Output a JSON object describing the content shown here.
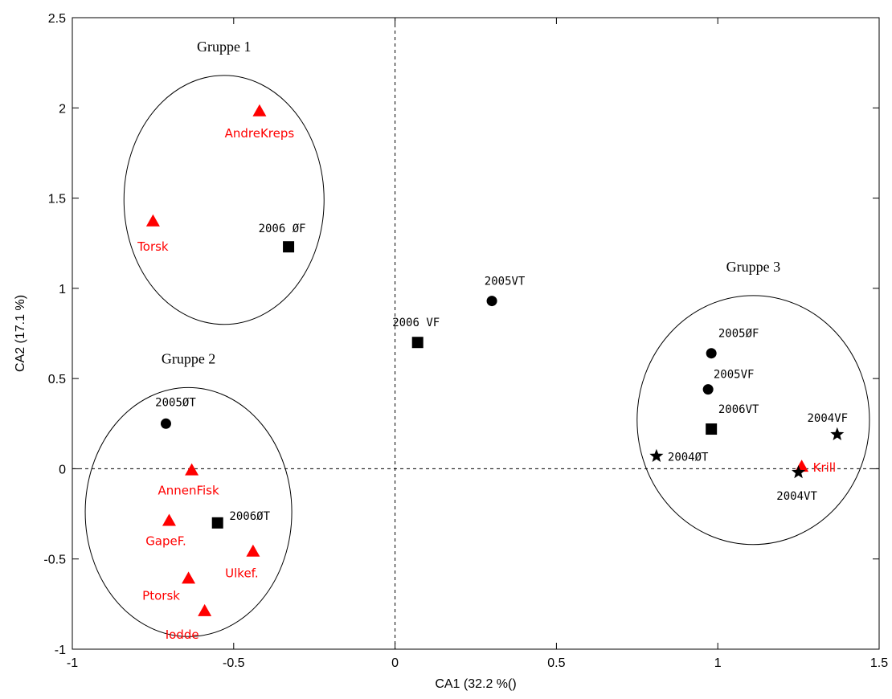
{
  "colors": {
    "species": "#ff0000",
    "site": "#000000",
    "axes": "#000000"
  },
  "chart_data": {
    "type": "scatter",
    "title": "",
    "xlabel": "CA1 (32.2 %()",
    "ylabel": "CA2 (17.1 %)",
    "xlim": [
      -1,
      1.5
    ],
    "ylim": [
      -1,
      2.5
    ],
    "xticks": [
      -1,
      -0.5,
      0,
      0.5,
      1,
      1.5
    ],
    "xtick_labels": [
      "-1",
      "-0.5",
      "0",
      "0.5",
      "1",
      "1.5"
    ],
    "yticks": [
      -1,
      -0.5,
      0,
      0.5,
      1,
      1.5,
      2,
      2.5
    ],
    "ytick_labels": [
      "-1",
      "-0.5",
      "0",
      "0.5",
      "1",
      "1.5",
      "2",
      "2.5"
    ],
    "grid": false,
    "reference_lines": {
      "x": 0,
      "y": 0,
      "style": "dashed"
    },
    "series": [
      {
        "marker": "triangle",
        "color": "#ff0000",
        "points": [
          {
            "label": "AndreKreps",
            "x": -0.42,
            "y": 1.98
          },
          {
            "label": "Torsk",
            "x": -0.75,
            "y": 1.37
          },
          {
            "label": "AnnenFisk",
            "x": -0.63,
            "y": -0.01
          },
          {
            "label": "GapeF.",
            "x": -0.7,
            "y": -0.29
          },
          {
            "label": "Ulkef.",
            "x": -0.44,
            "y": -0.46
          },
          {
            "label": "Ptorsk",
            "x": -0.64,
            "y": -0.61
          },
          {
            "label": "Iodde",
            "x": -0.59,
            "y": -0.79
          },
          {
            "label": "Krill",
            "x": 1.26,
            "y": 0.01
          }
        ]
      },
      {
        "marker": "square",
        "color": "#000000",
        "points": [
          {
            "label": "2006 ØF",
            "x": -0.33,
            "y": 1.23
          },
          {
            "label": "2006 VF",
            "x": 0.07,
            "y": 0.7
          },
          {
            "label": "2006ØT",
            "x": -0.55,
            "y": -0.3
          },
          {
            "label": "2006VT",
            "x": 0.98,
            "y": 0.22
          }
        ]
      },
      {
        "marker": "circle",
        "color": "#000000",
        "points": [
          {
            "label": "2005VT",
            "x": 0.3,
            "y": 0.93
          },
          {
            "label": "2005ØT",
            "x": -0.71,
            "y": 0.25
          },
          {
            "label": "2005ØF",
            "x": 0.98,
            "y": 0.64
          },
          {
            "label": "2005VF",
            "x": 0.97,
            "y": 0.44
          }
        ]
      },
      {
        "marker": "star",
        "color": "#000000",
        "points": [
          {
            "label": "2004VF",
            "x": 1.37,
            "y": 0.19
          },
          {
            "label": "2004ØT",
            "x": 0.81,
            "y": 0.07
          },
          {
            "label": "2004VT",
            "x": 1.25,
            "y": -0.02
          }
        ]
      }
    ],
    "groups": [
      {
        "label": "Gruppe 1",
        "center": [
          -0.53,
          1.49
        ],
        "radii": [
          0.31,
          0.69
        ]
      },
      {
        "label": "Gruppe 2",
        "center": [
          -0.64,
          -0.24
        ],
        "radii": [
          0.32,
          0.69
        ]
      },
      {
        "label": "Gruppe 3",
        "center": [
          1.11,
          0.27
        ],
        "radii": [
          0.36,
          0.69
        ]
      }
    ]
  }
}
